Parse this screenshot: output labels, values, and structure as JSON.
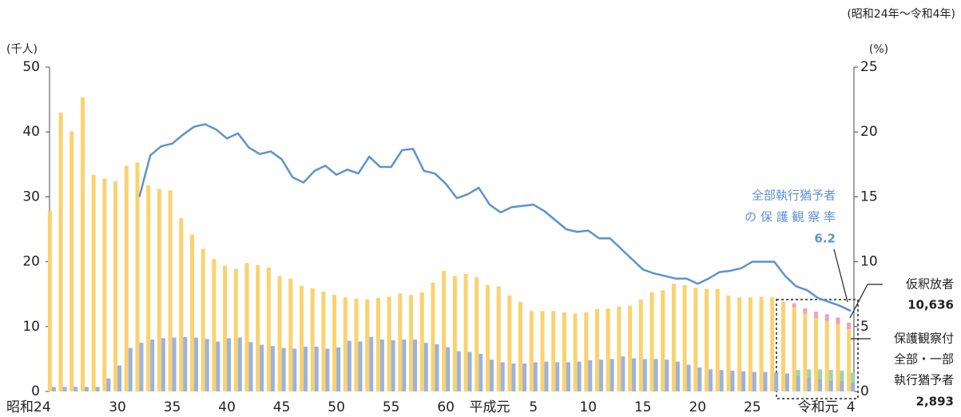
{
  "chart_data": {
    "type": "bar",
    "note": "(昭和24年～令和4年)",
    "y_label": "(千人)",
    "y2_label": "(%)",
    "categories": [
      "昭和24",
      null,
      null,
      null,
      null,
      null,
      "30",
      null,
      null,
      null,
      null,
      "35",
      null,
      null,
      null,
      null,
      "40",
      null,
      null,
      null,
      null,
      "45",
      null,
      null,
      null,
      null,
      "50",
      null,
      null,
      null,
      null,
      "55",
      null,
      null,
      null,
      null,
      "60",
      null,
      null,
      null,
      "平成元",
      null,
      null,
      null,
      "5",
      null,
      null,
      null,
      null,
      "10",
      null,
      null,
      null,
      null,
      "15",
      null,
      null,
      null,
      null,
      "20",
      null,
      null,
      null,
      null,
      "25",
      null,
      null,
      null,
      null,
      null,
      "令和元",
      null,
      null,
      "4"
    ],
    "ylim": [
      0,
      50
    ],
    "yticks": [
      0,
      10,
      20,
      30,
      40,
      50
    ],
    "y2lim": [
      0,
      25
    ],
    "y2ticks": [
      0,
      5,
      10,
      15,
      20,
      25
    ],
    "series": [
      {
        "name": "仮釈放者",
        "color": "#fad26e",
        "values": [
          27.8,
          43.0,
          40.1,
          45.3,
          33.4,
          32.8,
          32.4,
          34.8,
          35.3,
          31.8,
          31.2,
          31.0,
          26.7,
          24.2,
          22.0,
          20.4,
          19.4,
          18.9,
          19.8,
          19.5,
          19.1,
          17.8,
          17.4,
          16.3,
          15.9,
          15.4,
          14.9,
          14.5,
          14.3,
          14.2,
          14.4,
          14.6,
          15.1,
          14.9,
          15.3,
          16.8,
          18.6,
          17.8,
          18.1,
          17.6,
          16.4,
          16.2,
          14.8,
          13.8,
          12.4,
          12.4,
          12.4,
          12.2,
          12.0,
          12.2,
          12.7,
          12.8,
          13.1,
          13.2,
          14.2,
          15.3,
          15.6,
          16.6,
          16.4,
          16.0,
          15.8,
          15.8,
          14.8,
          14.5,
          14.5,
          14.6,
          14.5,
          13.7,
          13.0,
          12.0,
          11.3,
          10.9,
          10.4,
          9.6
        ]
      },
      {
        "color": "#f2a0b4",
        "stack_on": 0,
        "values": [
          null,
          null,
          null,
          null,
          null,
          null,
          null,
          null,
          null,
          null,
          null,
          null,
          null,
          null,
          null,
          null,
          null,
          null,
          null,
          null,
          null,
          null,
          null,
          null,
          null,
          null,
          null,
          null,
          null,
          null,
          null,
          null,
          null,
          null,
          null,
          null,
          null,
          null,
          null,
          null,
          null,
          null,
          null,
          null,
          null,
          null,
          null,
          null,
          null,
          null,
          null,
          null,
          null,
          null,
          null,
          null,
          null,
          null,
          null,
          null,
          null,
          null,
          null,
          null,
          null,
          null,
          null,
          0.1,
          0.6,
          0.8,
          1.0,
          1.0,
          1.0,
          1.0
        ]
      },
      {
        "color": "#9bb3dc",
        "values": [
          0.7,
          0.7,
          0.7,
          0.7,
          0.7,
          2.0,
          4.0,
          6.7,
          7.5,
          8.0,
          8.2,
          8.3,
          8.4,
          8.3,
          8.1,
          7.7,
          8.2,
          8.3,
          7.6,
          7.2,
          7.0,
          6.7,
          6.6,
          6.9,
          6.9,
          6.6,
          6.8,
          7.8,
          7.7,
          8.4,
          8.0,
          7.9,
          8.0,
          8.0,
          7.5,
          7.3,
          6.8,
          6.2,
          6.1,
          5.8,
          4.9,
          4.5,
          4.3,
          4.3,
          4.5,
          4.6,
          4.5,
          4.5,
          4.6,
          4.8,
          4.9,
          5.0,
          5.4,
          5.1,
          5.0,
          5.0,
          4.9,
          4.6,
          4.1,
          3.7,
          3.4,
          3.3,
          3.2,
          3.1,
          3.0,
          3.0,
          2.9,
          2.7,
          2.4,
          2.2,
          1.9,
          1.7,
          1.6,
          1.3
        ]
      },
      {
        "color": "#9ad6a6",
        "stack_on": 2,
        "values": [
          null,
          null,
          null,
          null,
          null,
          null,
          null,
          null,
          null,
          null,
          null,
          null,
          null,
          null,
          null,
          null,
          null,
          null,
          null,
          null,
          null,
          null,
          null,
          null,
          null,
          null,
          null,
          null,
          null,
          null,
          null,
          null,
          null,
          null,
          null,
          null,
          null,
          null,
          null,
          null,
          null,
          null,
          null,
          null,
          null,
          null,
          null,
          null,
          null,
          null,
          null,
          null,
          null,
          null,
          null,
          null,
          null,
          null,
          null,
          null,
          null,
          null,
          null,
          null,
          null,
          null,
          null,
          0.1,
          0.9,
          1.2,
          1.5,
          1.6,
          1.6,
          1.6
        ]
      },
      {
        "type": "line",
        "axis": "y2",
        "color": "#5b93cf",
        "values": [
          null,
          null,
          null,
          null,
          null,
          null,
          null,
          null,
          15.0,
          18.2,
          18.9,
          19.1,
          19.8,
          20.4,
          20.6,
          20.2,
          19.5,
          19.9,
          18.8,
          18.3,
          18.5,
          17.9,
          16.5,
          16.1,
          17.0,
          17.4,
          16.7,
          17.1,
          16.8,
          18.1,
          17.3,
          17.3,
          18.6,
          18.7,
          17.0,
          16.8,
          16.0,
          14.9,
          15.2,
          15.7,
          14.4,
          13.8,
          14.2,
          14.3,
          14.4,
          13.9,
          13.2,
          12.5,
          12.3,
          12.4,
          11.8,
          11.8,
          11.0,
          10.2,
          9.4,
          9.1,
          8.9,
          8.7,
          8.7,
          8.3,
          8.7,
          9.2,
          9.3,
          9.5,
          10.0,
          10.0,
          10.0,
          8.9,
          8.1,
          7.8,
          7.2,
          6.9,
          6.6,
          6.2
        ]
      }
    ],
    "annotations": {
      "rate_lines": [
        "全部執行猶予者",
        "の 保 護 観 察 率"
      ],
      "rate_value": "6.2",
      "parole_value": "10,636",
      "probation_lines": [
        "保護観察付",
        "全部・一部",
        "執行猶予者"
      ],
      "probation_value": "2,893"
    }
  }
}
